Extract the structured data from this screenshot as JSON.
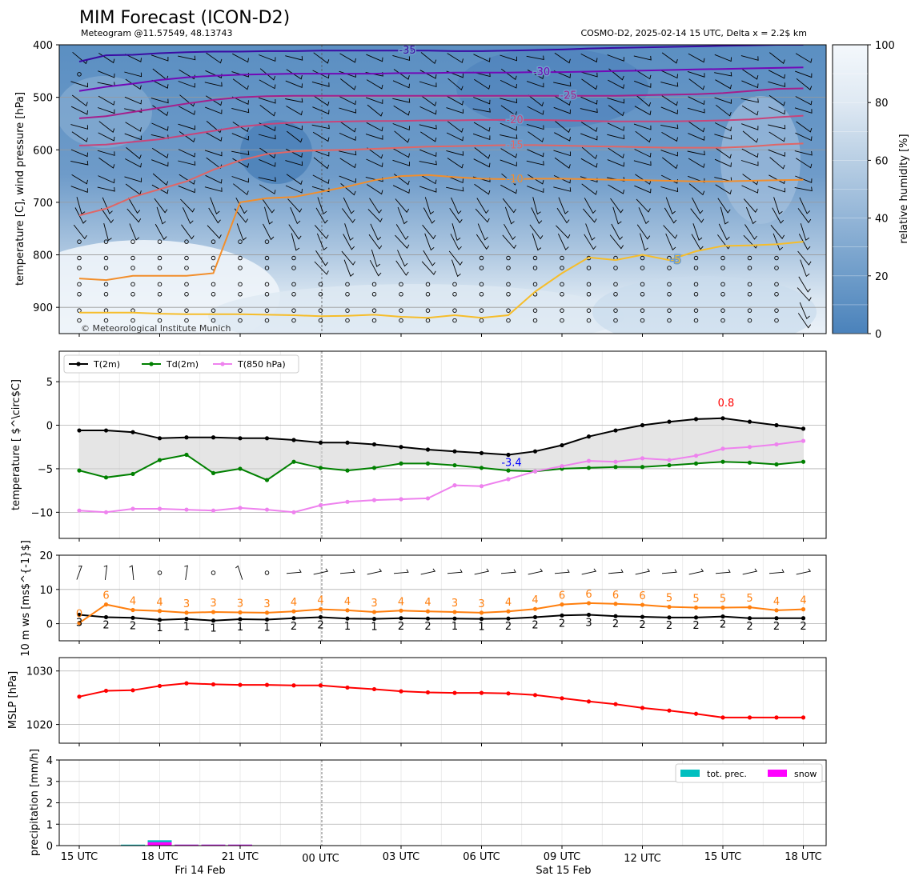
{
  "header": {
    "title": "MIM Forecast (ICON-D2)",
    "left_subtitle": "Meteogram @11.57549, 48.13743",
    "right_subtitle": "COSMO-D2, 2025-02-14 15 UTC, Delta x = 2.2$ km",
    "copyright": "© Meteorological Institute Munich"
  },
  "time_axis": {
    "tick_labels": [
      "15 UTC",
      "18 UTC",
      "21 UTC",
      "00 UTC",
      "03 UTC",
      "06 UTC",
      "09 UTC",
      "12 UTC",
      "15 UTC",
      "18 UTC"
    ],
    "date_labels": [
      "Fri 14 Feb",
      "Sat 15 Feb"
    ]
  },
  "chart_data": [
    {
      "id": "upper",
      "type": "heatmap",
      "ylabel": "temperature [C], wind pressure [hPa]",
      "y_ticks": [
        "400",
        "500",
        "600",
        "700",
        "800",
        "900"
      ],
      "ylim": [
        950,
        400
      ],
      "colorbar_label": "relative humidity [%]",
      "colorbar_ticks": [
        "0",
        "20",
        "40",
        "60",
        "80",
        "100"
      ],
      "contour_labels": [
        "-35",
        "-30",
        "-25",
        "-20",
        "-15",
        "-10",
        "-5"
      ],
      "contours": [
        {
          "level": -35,
          "color": "#3a0ca3",
          "p": [
            432,
            420,
            419,
            416,
            414,
            413,
            413,
            412,
            412,
            411,
            411,
            411,
            411,
            411,
            412,
            412,
            411,
            410,
            409,
            407,
            406,
            405,
            404,
            403,
            402,
            401,
            400,
            400
          ]
        },
        {
          "level": -30,
          "color": "#7209b7",
          "p": [
            488,
            480,
            474,
            467,
            462,
            459,
            457,
            456,
            455,
            455,
            455,
            455,
            454,
            454,
            453,
            453,
            453,
            452,
            452,
            451,
            450,
            449,
            448,
            447,
            446,
            445,
            444,
            443
          ]
        },
        {
          "level": -25,
          "color": "#a4208c",
          "p": [
            540,
            536,
            528,
            520,
            512,
            505,
            500,
            498,
            497,
            497,
            497,
            497,
            497,
            497,
            497,
            497,
            497,
            497,
            497,
            497,
            497,
            496,
            495,
            494,
            492,
            488,
            484,
            483
          ]
        },
        {
          "level": -20,
          "color": "#c8447a",
          "p": [
            592,
            590,
            585,
            580,
            572,
            564,
            556,
            551,
            548,
            547,
            546,
            545,
            545,
            544,
            544,
            543,
            543,
            543,
            544,
            545,
            546,
            546,
            546,
            545,
            544,
            542,
            538,
            535
          ]
        },
        {
          "level": -15,
          "color": "#e06666",
          "p": [
            725,
            712,
            690,
            675,
            660,
            638,
            620,
            608,
            603,
            601,
            600,
            598,
            596,
            594,
            593,
            592,
            591,
            591,
            592,
            593,
            594,
            595,
            596,
            596,
            596,
            594,
            590,
            588
          ]
        },
        {
          "level": -10,
          "color": "#f28e2b",
          "p": [
            845,
            848,
            840,
            840,
            840,
            835,
            700,
            692,
            690,
            680,
            670,
            658,
            650,
            648,
            652,
            655,
            656,
            655,
            655,
            656,
            657,
            658,
            659,
            660,
            660,
            659,
            658,
            657
          ]
        },
        {
          "level": -5,
          "color": "#f6bd2a",
          "p": [
            910,
            910,
            910,
            912,
            913,
            913,
            913,
            914,
            915,
            917,
            916,
            914,
            918,
            920,
            915,
            920,
            915,
            870,
            835,
            805,
            810,
            800,
            810,
            793,
            783,
            782,
            780,
            775
          ]
        }
      ]
    },
    {
      "id": "temperature",
      "type": "line",
      "ylabel": "temperature [ $^\\circ$C]",
      "y_ticks": [
        "5",
        "0",
        "−5",
        "−10"
      ],
      "ylim": [
        -13,
        8.5
      ],
      "legend_position": "top-left",
      "series": [
        {
          "name": "T(2m)",
          "color": "#000000",
          "values": [
            -0.6,
            -0.6,
            -0.8,
            -1.5,
            -1.4,
            -1.4,
            -1.5,
            -1.5,
            -1.7,
            -2.0,
            -2.0,
            -2.2,
            -2.5,
            -2.8,
            -3.0,
            -3.2,
            -3.4,
            -3.0,
            -2.3,
            -1.3,
            -0.6,
            0.0,
            0.4,
            0.7,
            0.8,
            0.4,
            0.0,
            -0.4
          ]
        },
        {
          "name": "Td(2m)",
          "color": "#008000",
          "values": [
            -5.2,
            -6.0,
            -5.6,
            -4.0,
            -3.4,
            -5.5,
            -5.0,
            -6.3,
            -4.2,
            -4.9,
            -5.2,
            -4.9,
            -4.4,
            -4.4,
            -4.6,
            -4.9,
            -5.2,
            -5.3,
            -5.0,
            -4.9,
            -4.8,
            -4.8,
            -4.6,
            -4.4,
            -4.2,
            -4.3,
            -4.5,
            -4.2
          ]
        },
        {
          "name": "T(850 hPa)",
          "color": "#ee82ee",
          "values": [
            -9.8,
            -10.0,
            -9.6,
            -9.6,
            -9.7,
            -9.8,
            -9.5,
            -9.7,
            -10.0,
            -9.2,
            -8.8,
            -8.6,
            -8.5,
            -8.4,
            -6.9,
            -7.0,
            -6.2,
            -5.3,
            -4.7,
            -4.1,
            -4.2,
            -3.8,
            -4.0,
            -3.5,
            -2.7,
            -2.5,
            -2.2,
            -1.8
          ]
        }
      ],
      "annotations": [
        {
          "text": "-3.4",
          "color": "#0000ff",
          "index": 16,
          "value": -3.4
        },
        {
          "text": "0.8",
          "color": "#ff0000",
          "index": 24,
          "value": 0.8
        }
      ]
    },
    {
      "id": "wind",
      "type": "line",
      "ylabel": "10 m ws [ms$^{-1}$]",
      "y_ticks": [
        "20",
        "10",
        "0"
      ],
      "ylim": [
        -5,
        20
      ],
      "series": [
        {
          "name": "mean",
          "color": "#000000",
          "values": [
            2.6,
            1.9,
            1.7,
            1.1,
            1.4,
            0.9,
            1.3,
            1.2,
            1.6,
            1.9,
            1.5,
            1.4,
            1.6,
            1.5,
            1.5,
            1.4,
            1.5,
            1.9,
            2.4,
            2.6,
            2.2,
            2.0,
            1.8,
            1.8,
            2.1,
            1.6,
            1.6,
            1.6
          ]
        },
        {
          "name": "gust",
          "color": "#ff7f0e",
          "values": [
            0.2,
            5.6,
            4.0,
            3.7,
            3.2,
            3.4,
            3.3,
            3.2,
            3.6,
            4.2,
            3.9,
            3.4,
            3.8,
            3.6,
            3.4,
            3.2,
            3.6,
            4.3,
            5.6,
            6.0,
            5.8,
            5.5,
            4.9,
            4.7,
            4.7,
            4.8,
            3.9,
            4.2
          ]
        }
      ],
      "mean_labels": [
        "3",
        "2",
        "2",
        "1",
        "1",
        "1",
        "1",
        "1",
        "2",
        "2",
        "1",
        "1",
        "2",
        "2",
        "1",
        "1",
        "2",
        "2",
        "2",
        "3",
        "2",
        "2",
        "2",
        "2",
        "2",
        "2",
        "2",
        "2"
      ],
      "gust_labels": [
        "0",
        "6",
        "4",
        "4",
        "3",
        "3",
        "3",
        "3",
        "4",
        "4",
        "4",
        "3",
        "4",
        "4",
        "3",
        "3",
        "4",
        "4",
        "6",
        "6",
        "6",
        "6",
        "5",
        "5",
        "5",
        "5",
        "4",
        "4"
      ]
    },
    {
      "id": "mslp",
      "type": "line",
      "ylabel": "MSLP [hPa]",
      "y_ticks": [
        "1030",
        "1020"
      ],
      "ylim": [
        1016.5,
        1032.5
      ],
      "series": [
        {
          "name": "MSLP",
          "color": "#ff0000",
          "values": [
            1025.2,
            1026.3,
            1026.4,
            1027.2,
            1027.7,
            1027.5,
            1027.4,
            1027.4,
            1027.3,
            1027.3,
            1026.9,
            1026.6,
            1026.2,
            1026.0,
            1025.9,
            1025.9,
            1025.8,
            1025.5,
            1024.9,
            1024.3,
            1023.8,
            1023.1,
            1022.6,
            1022.0,
            1021.3,
            1021.3,
            1021.3,
            1021.3
          ]
        }
      ]
    },
    {
      "id": "precipitation",
      "type": "bar",
      "ylabel": "precipitation [mm/h]",
      "y_ticks": [
        "0",
        "1",
        "2",
        "3",
        "4"
      ],
      "ylim": [
        0,
        4
      ],
      "legend_position": "top-right",
      "series": [
        {
          "name": "tot. prec.",
          "color": "#00bfbf",
          "values": [
            0,
            0,
            0.02,
            0.25,
            0.02,
            0.02,
            0.01,
            0,
            0,
            0,
            0,
            0,
            0,
            0,
            0,
            0,
            0,
            0,
            0,
            0,
            0,
            0,
            0,
            0,
            0,
            0,
            0,
            0
          ]
        },
        {
          "name": "snow",
          "color": "#ff00ff",
          "values": [
            0,
            0,
            0,
            0.16,
            0.02,
            0.02,
            0.01,
            0,
            0,
            0,
            0,
            0,
            0,
            0,
            0,
            0,
            0,
            0,
            0,
            0,
            0,
            0,
            0,
            0,
            0,
            0,
            0,
            0
          ]
        }
      ]
    }
  ]
}
